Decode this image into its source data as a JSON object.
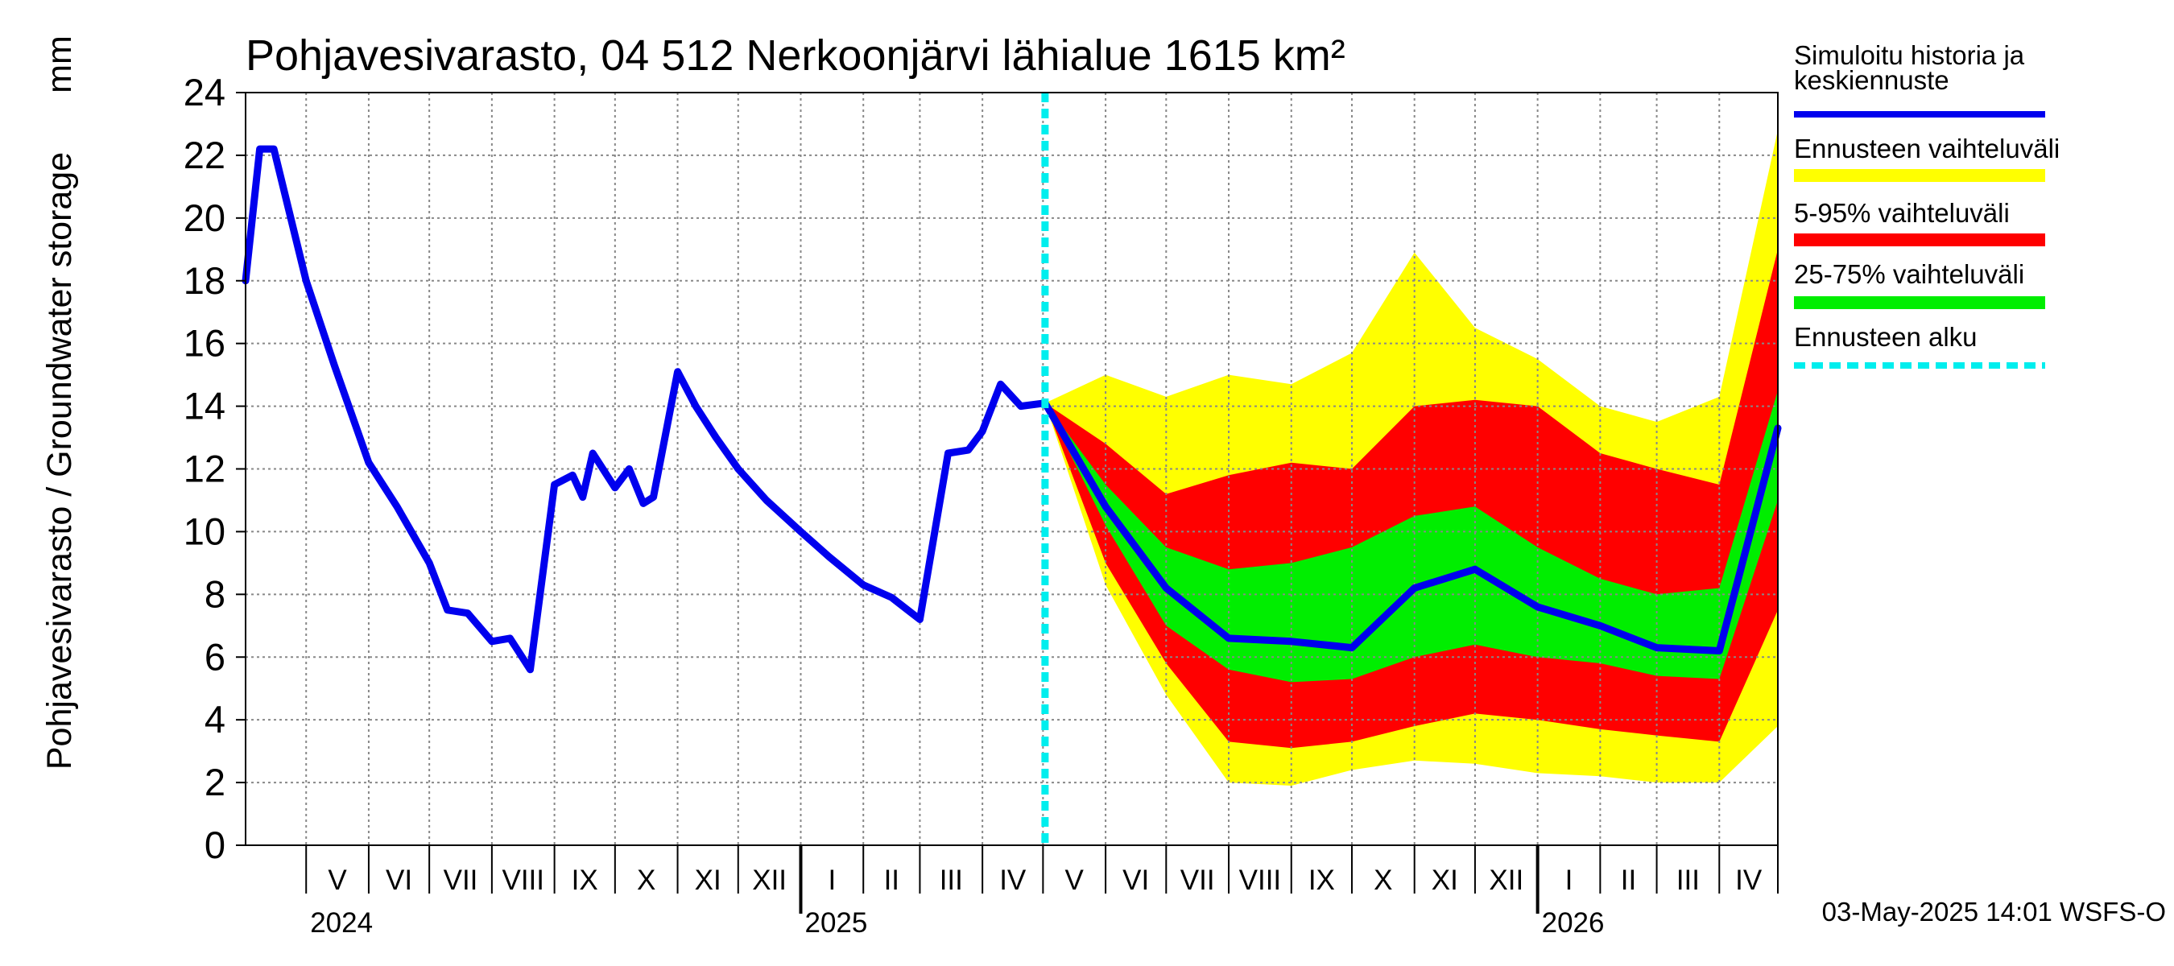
{
  "chart_data": {
    "type": "area",
    "title": "Pohjavesivarasto, 04 512 Nerkoonjärvi lähialue 1615 km²",
    "ylabel": "Pohjavesivarasto / Groundwater storage",
    "unit": "mm",
    "ylim": [
      0,
      24
    ],
    "yticks": [
      "0",
      "2",
      "4",
      "6",
      "8",
      "10",
      "12",
      "14",
      "16",
      "18",
      "20",
      "22",
      "24"
    ],
    "xlim": [
      "2024-04-01",
      "2026-04-30"
    ],
    "grid": true,
    "legend_position": "right",
    "months": [
      {
        "label": "V",
        "start": "2024-05-01"
      },
      {
        "label": "VI",
        "start": "2024-06-01"
      },
      {
        "label": "VII",
        "start": "2024-07-01"
      },
      {
        "label": "VIII",
        "start": "2024-08-01"
      },
      {
        "label": "IX",
        "start": "2024-09-01"
      },
      {
        "label": "X",
        "start": "2024-10-01"
      },
      {
        "label": "XI",
        "start": "2024-11-01"
      },
      {
        "label": "XII",
        "start": "2024-12-01"
      },
      {
        "label": "I",
        "start": "2025-01-01"
      },
      {
        "label": "II",
        "start": "2025-02-01"
      },
      {
        "label": "III",
        "start": "2025-03-01"
      },
      {
        "label": "IV",
        "start": "2025-04-01"
      },
      {
        "label": "V",
        "start": "2025-05-01"
      },
      {
        "label": "VI",
        "start": "2025-06-01"
      },
      {
        "label": "VII",
        "start": "2025-07-01"
      },
      {
        "label": "VIII",
        "start": "2025-08-01"
      },
      {
        "label": "IX",
        "start": "2025-09-01"
      },
      {
        "label": "X",
        "start": "2025-10-01"
      },
      {
        "label": "XI",
        "start": "2025-11-01"
      },
      {
        "label": "XII",
        "start": "2025-12-01"
      },
      {
        "label": "I",
        "start": "2026-01-01"
      },
      {
        "label": "II",
        "start": "2026-02-01"
      },
      {
        "label": "III",
        "start": "2026-03-01"
      },
      {
        "label": "IV",
        "start": "2026-04-01"
      }
    ],
    "years": [
      {
        "label": "2024",
        "date": "2024-05-01"
      },
      {
        "label": "2025",
        "date": "2025-01-01"
      },
      {
        "label": "2026",
        "date": "2026-01-01"
      }
    ],
    "forecast_start": "2025-05-02",
    "colors": {
      "history": "#0000ee",
      "full_range": "#ffff00",
      "p5_95": "#ff0000",
      "p25_75": "#00ee00",
      "forecast_start": "#00eeee",
      "grid": "#888888"
    },
    "legend": [
      {
        "label": "Simuloitu historia ja",
        "label2": "keskiennuste",
        "key": "history"
      },
      {
        "label": "Ennusteen vaihteluväli",
        "key": "full_range"
      },
      {
        "label": "5-95% vaihteluväli",
        "key": "p5_95"
      },
      {
        "label": "25-75% vaihteluväli",
        "key": "p25_75"
      },
      {
        "label": "Ennusteen alku",
        "key": "forecast_start"
      }
    ],
    "series": [
      {
        "key": "history",
        "x": [
          "2024-04-01",
          "2024-04-08",
          "2024-04-15",
          "2024-05-01",
          "2024-05-15",
          "2024-06-01",
          "2024-06-15",
          "2024-07-01",
          "2024-07-10",
          "2024-07-20",
          "2024-08-01",
          "2024-08-10",
          "2024-08-20",
          "2024-09-01",
          "2024-09-10",
          "2024-09-15",
          "2024-09-20",
          "2024-10-01",
          "2024-10-08",
          "2024-10-15",
          "2024-10-20",
          "2024-11-01",
          "2024-11-10",
          "2024-11-20",
          "2024-12-01",
          "2024-12-15",
          "2025-01-01",
          "2025-01-15",
          "2025-02-01",
          "2025-02-15",
          "2025-03-01",
          "2025-03-15",
          "2025-03-25",
          "2025-04-01",
          "2025-04-10",
          "2025-04-20",
          "2025-05-02"
        ],
        "y": [
          18.0,
          22.2,
          22.2,
          18.0,
          15.3,
          12.2,
          10.8,
          9.0,
          7.5,
          7.4,
          6.5,
          6.6,
          5.6,
          11.5,
          11.8,
          11.1,
          12.5,
          11.4,
          12.0,
          10.9,
          11.1,
          15.1,
          14.0,
          13.0,
          12.0,
          11.0,
          10.0,
          9.2,
          8.3,
          7.9,
          7.2,
          12.5,
          12.6,
          13.2,
          14.7,
          14.0,
          14.1
        ]
      },
      {
        "key": "median",
        "x": [
          "2025-05-02",
          "2025-06-01",
          "2025-07-01",
          "2025-08-01",
          "2025-09-01",
          "2025-10-01",
          "2025-11-01",
          "2025-12-01",
          "2026-01-01",
          "2026-02-01",
          "2026-03-01",
          "2026-04-01",
          "2026-04-30"
        ],
        "y": [
          14.1,
          10.8,
          8.2,
          6.6,
          6.5,
          6.3,
          8.2,
          8.8,
          7.6,
          7.0,
          6.3,
          6.2,
          13.3
        ]
      },
      {
        "key": "p25_75",
        "x": [
          "2025-05-02",
          "2025-06-01",
          "2025-07-01",
          "2025-08-01",
          "2025-09-01",
          "2025-10-01",
          "2025-11-01",
          "2025-12-01",
          "2026-01-01",
          "2026-02-01",
          "2026-03-01",
          "2026-04-01",
          "2026-04-30"
        ],
        "low": [
          14.1,
          10.2,
          7.0,
          5.6,
          5.2,
          5.3,
          6.0,
          6.4,
          6.0,
          5.8,
          5.4,
          5.3,
          11.0
        ],
        "high": [
          14.1,
          11.5,
          9.5,
          8.8,
          9.0,
          9.5,
          10.5,
          10.8,
          9.5,
          8.5,
          8.0,
          8.2,
          14.5
        ]
      },
      {
        "key": "p5_95",
        "x": [
          "2025-05-02",
          "2025-06-01",
          "2025-07-01",
          "2025-08-01",
          "2025-09-01",
          "2025-10-01",
          "2025-11-01",
          "2025-12-01",
          "2026-01-01",
          "2026-02-01",
          "2026-03-01",
          "2026-04-01",
          "2026-04-30"
        ],
        "low": [
          14.1,
          9.0,
          5.8,
          3.3,
          3.1,
          3.3,
          3.8,
          4.2,
          4.0,
          3.7,
          3.5,
          3.3,
          7.5
        ],
        "high": [
          14.1,
          12.8,
          11.2,
          11.8,
          12.2,
          12.0,
          14.0,
          14.2,
          14.0,
          12.5,
          12.0,
          11.5,
          19.0
        ]
      },
      {
        "key": "full_range",
        "x": [
          "2025-05-02",
          "2025-06-01",
          "2025-07-01",
          "2025-08-01",
          "2025-09-01",
          "2025-10-01",
          "2025-11-01",
          "2025-12-01",
          "2026-01-01",
          "2026-02-01",
          "2026-03-01",
          "2026-04-01",
          "2026-04-30"
        ],
        "low": [
          14.1,
          8.3,
          4.8,
          2.0,
          1.9,
          2.4,
          2.7,
          2.6,
          2.3,
          2.2,
          2.0,
          2.0,
          3.8
        ],
        "high": [
          14.1,
          15.0,
          14.3,
          15.0,
          14.7,
          15.7,
          18.9,
          16.5,
          15.5,
          14.0,
          13.5,
          14.3,
          22.8
        ]
      }
    ]
  },
  "footer": {
    "timestamp": "03-May-2025 14:01 WSFS-O"
  }
}
